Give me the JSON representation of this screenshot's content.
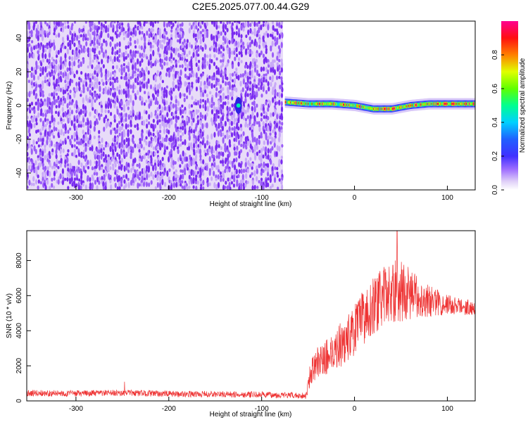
{
  "figure": {
    "title": "C2E5.2025.077.00.44.G29"
  },
  "chart_data": [
    {
      "type": "heatmap",
      "title": "C2E5.2025.077.00.44.G29",
      "xlabel": "Height of straight line (km)",
      "ylabel": "Frequency (Hz)",
      "xlim": [
        -353,
        130
      ],
      "ylim": [
        -50,
        50
      ],
      "x_ticks": [
        -300,
        -200,
        -100,
        0,
        100
      ],
      "x_tick_labels": [
        "-300",
        "-200",
        "-100",
        "0",
        "100"
      ],
      "y_ticks": [
        -40,
        -20,
        0,
        20,
        40
      ],
      "y_tick_labels": [
        "-40",
        "-20",
        "0",
        "20",
        "40"
      ],
      "colorbar": {
        "label": "Normalized spectral amplitude",
        "range": [
          0,
          1
        ],
        "ticks": [
          0.0,
          0.2,
          0.4,
          0.6,
          0.8
        ],
        "tick_labels": [
          "0.0",
          "0.2",
          "0.4",
          "0.6",
          "0.8"
        ],
        "colors": [
          "#ffffff",
          "#d8c8f0",
          "#8040ff",
          "#2020ff",
          "#00c0ff",
          "#00ff80",
          "#80ff00",
          "#ffff00",
          "#ff8000",
          "#ff0000",
          "#ff0080"
        ]
      },
      "noise_region": {
        "x_range": [
          -353,
          -77
        ],
        "color": "#8040f0",
        "level": 0.1
      },
      "blip": {
        "x": -125,
        "frequency": 0,
        "level": 0.35
      },
      "signal_track": {
        "x_start": -75,
        "x_end": 130,
        "frequency": [
          [
            -75,
            2
          ],
          [
            -50,
            1
          ],
          [
            -25,
            1
          ],
          [
            0,
            0
          ],
          [
            20,
            -2
          ],
          [
            40,
            -2
          ],
          [
            60,
            0
          ],
          [
            80,
            1
          ],
          [
            100,
            1
          ],
          [
            130,
            1
          ]
        ],
        "peak_level": 1.0
      },
      "grid": false
    },
    {
      "type": "line",
      "xlabel": "Height of straight line (km)",
      "ylabel": "SNR (10 * v/v)",
      "xlim": [
        -353,
        130
      ],
      "ylim": [
        0,
        9700
      ],
      "x_ticks": [
        -300,
        -200,
        -100,
        0,
        100
      ],
      "x_tick_labels": [
        "-300",
        "-200",
        "-100",
        "0",
        "100"
      ],
      "y_ticks": [
        0,
        2000,
        4000,
        6000,
        8000
      ],
      "y_tick_labels": [
        "0",
        "2000",
        "4000",
        "6000",
        "8000"
      ],
      "color": "#ee3333",
      "series": [
        {
          "envelope": [
            [
              -353,
              450
            ],
            [
              -300,
              420
            ],
            [
              -250,
              460
            ],
            [
              -200,
              400
            ],
            [
              -150,
              380
            ],
            [
              -100,
              350
            ],
            [
              -75,
              320
            ],
            [
              -52,
              300
            ],
            [
              -48,
              1500
            ],
            [
              -40,
              2200
            ],
            [
              -30,
              2500
            ],
            [
              -20,
              3000
            ],
            [
              -10,
              3400
            ],
            [
              0,
              4000
            ],
            [
              10,
              4800
            ],
            [
              20,
              5400
            ],
            [
              30,
              5900
            ],
            [
              40,
              6200
            ],
            [
              50,
              6300
            ],
            [
              60,
              6100
            ],
            [
              70,
              5900
            ],
            [
              80,
              5700
            ],
            [
              90,
              5600
            ],
            [
              100,
              5500
            ],
            [
              110,
              5400
            ],
            [
              120,
              5350
            ],
            [
              130,
              5300
            ]
          ],
          "spread": [
            [
              -353,
              180
            ],
            [
              -52,
              180
            ],
            [
              -48,
              700
            ],
            [
              -20,
              1200
            ],
            [
              0,
              1500
            ],
            [
              30,
              1700
            ],
            [
              50,
              1800
            ],
            [
              70,
              1100
            ],
            [
              100,
              600
            ],
            [
              130,
              400
            ]
          ],
          "peak": {
            "x": 46,
            "y": 9700
          }
        }
      ],
      "grid": false
    }
  ]
}
